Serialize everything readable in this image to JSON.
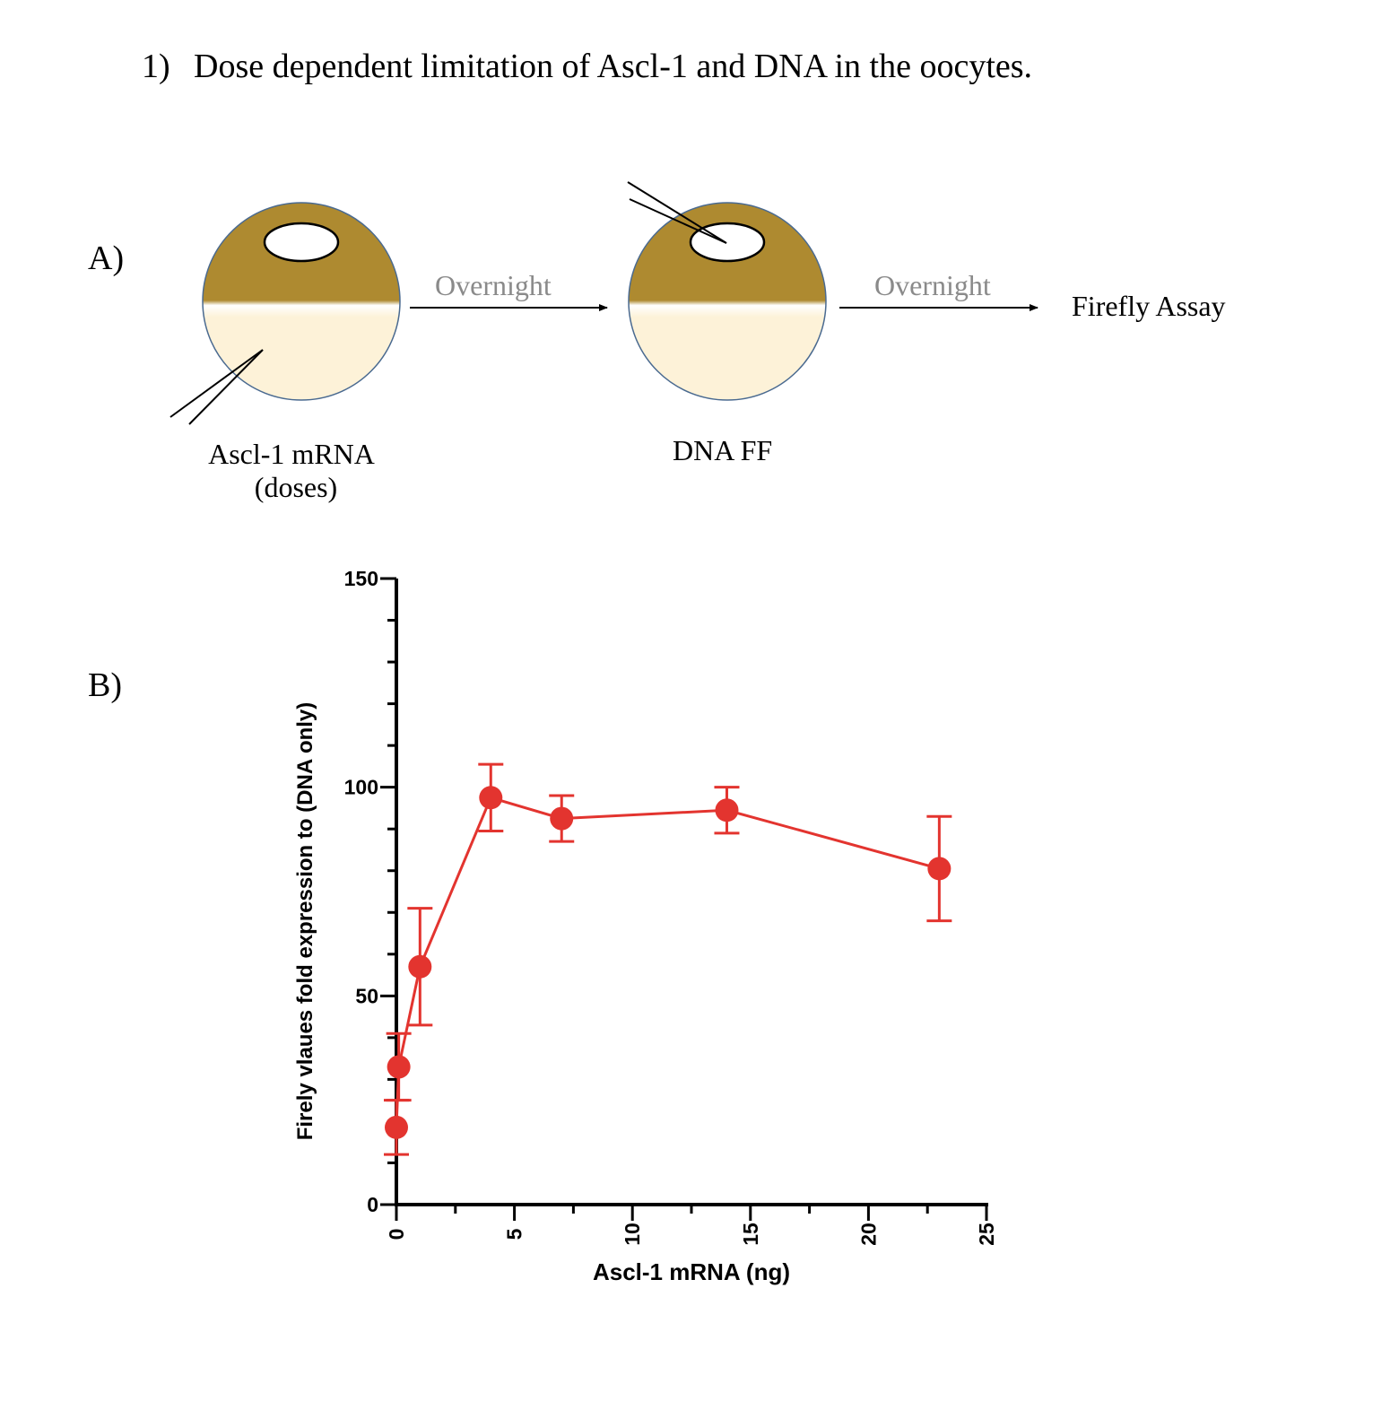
{
  "heading": {
    "number": "1)",
    "text": "Dose dependent limitation of Ascl-1 and DNA in the oocytes."
  },
  "panel_a": {
    "label": "A)",
    "step1_label_line1": "Ascl-1 mRNA",
    "step1_label_line2": "(doses)",
    "arrow1_label": "Overnight",
    "step2_label": "DNA FF",
    "arrow2_label": "Overnight",
    "final_step": "Firefly Assay"
  },
  "panel_b": {
    "label": "B)"
  },
  "colors": {
    "animal_pole": "#ae8a30",
    "vegetal_pole": "#fdf2d8",
    "series": "#e3342f"
  },
  "chart_data": {
    "type": "scatter",
    "xlabel": "Ascl-1 mRNA (ng)",
    "ylabel": "Firely vlaues fold expression to (DNA only)",
    "xlim": [
      0,
      25
    ],
    "ylim": [
      0,
      150
    ],
    "xticks": [
      0,
      5,
      10,
      15,
      20,
      25
    ],
    "yticks": [
      0,
      50,
      100,
      150
    ],
    "connected": true,
    "error_bars": true,
    "series": [
      {
        "x": [
          0,
          0.1,
          1,
          4,
          7,
          14,
          23
        ],
        "y": [
          18.5,
          33,
          57,
          97.5,
          92.5,
          94.5,
          80.5
        ],
        "err": [
          6.5,
          8,
          14,
          8,
          5.5,
          5.5,
          12.5
        ]
      }
    ]
  }
}
